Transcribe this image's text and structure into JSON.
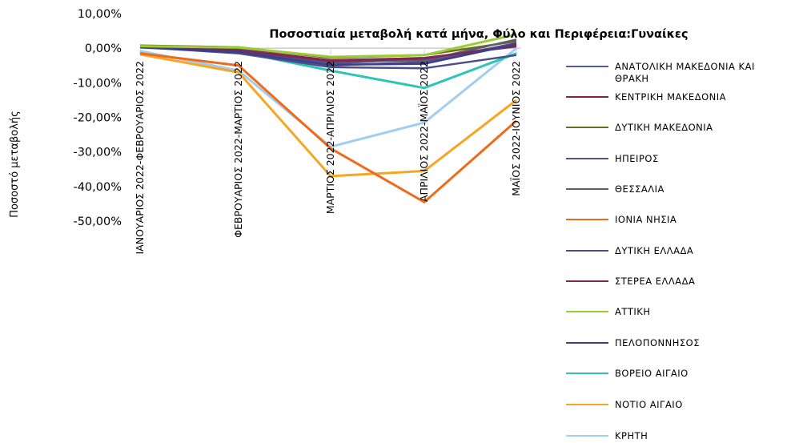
{
  "chart_data": {
    "type": "line",
    "title": "Ποσοστιαία μεταβολή  κατά μήνα, Φύλο και Περιφέρεια:Γυναίκες",
    "ylabel": "Ποσοστό μεταβολής",
    "xlabel": "",
    "ylim": [
      -50,
      10
    ],
    "yticks": [
      "10,00%",
      "0,00%",
      "-10,00%",
      "-20,00%",
      "-30,00%",
      "-40,00%",
      "-50,00%"
    ],
    "grid": "vertical",
    "legend_position": "right",
    "categories": [
      "ΙΑΝΟΥΑΡΙΟΣ 2022-ΦΕΒΡΟΥΑΡΙΟΣ 2022",
      "ΦΕΒΡΟΥΑΡΙΟΣ 2022-ΜΑΡΤΙΟΣ 2022",
      "ΜΑΡΤΙΟΣ 2022-ΑΠΡΙΛΙΟΣ 2022",
      "ΑΠΡΙΛΙΟΣ 2022-ΜΑΪΟΣ 2022",
      "ΜΑΪΟΣ 2022-ΙΟΥΝΙΟΣ 2022"
    ],
    "series": [
      {
        "name": "ΑΝΑΤΟΛΙΚΗ ΜΑΚΕΔΟΝΙΑ ΚΑΙ ΘΡΑΚΗ",
        "color": "#4f5aa0",
        "values": [
          0.3,
          -0.5,
          -4.5,
          -3.0,
          1.0
        ]
      },
      {
        "name": "ΚΕΝΤΡΙΚΗ ΜΑΚΕΔΟΝΙΑ",
        "color": "#8b1e4f",
        "values": [
          0.5,
          -0.3,
          -3.5,
          -2.8,
          0.5
        ]
      },
      {
        "name": "ΔΥΤΙΚΗ ΜΑΚΕΔΟΝΙΑ",
        "color": "#6b6b1e",
        "values": [
          0.8,
          0.3,
          -2.8,
          -2.0,
          2.0
        ]
      },
      {
        "name": "ΗΠΕΙΡΟΣ",
        "color": "#5a4f8c",
        "values": [
          0.2,
          -0.8,
          -5.0,
          -4.0,
          1.5
        ]
      },
      {
        "name": "ΘΕΣΣΑΛΙΑ",
        "color": "#5d5d6b",
        "values": [
          0.4,
          -0.4,
          -4.0,
          -3.5,
          2.5
        ]
      },
      {
        "name": "ΙΟΝΙΑ ΝΗΣΙΑ",
        "color": "#f06a1a",
        "values": [
          -1.5,
          -5.0,
          -29.0,
          -44.5,
          -21.0
        ]
      },
      {
        "name": "ΔΥΤΙΚΗ ΕΛΛΑΔΑ",
        "color": "#4a4f8a",
        "values": [
          0.3,
          -1.5,
          -5.5,
          -5.8,
          -2.0
        ]
      },
      {
        "name": "ΣΤΕΡΕΑ ΕΛΛΑΔΑ",
        "color": "#7a2a55",
        "values": [
          0.4,
          -0.6,
          -3.8,
          -3.0,
          0.8
        ]
      },
      {
        "name": "ΑΤΤΙΚΗ",
        "color": "#9acd32",
        "values": [
          0.6,
          0.2,
          -2.5,
          -2.0,
          4.0
        ]
      },
      {
        "name": "ΠΕΛΟΠΟΝΝΗΣΟΣ",
        "color": "#3d3d8c",
        "values": [
          0.3,
          -1.2,
          -4.8,
          -4.5,
          1.2
        ]
      },
      {
        "name": "ΒΟΡΕΙΟ ΑΙΓΑΙΟ",
        "color": "#2ec4b6",
        "values": [
          0.2,
          -1.0,
          -6.5,
          -11.5,
          -1.5
        ]
      },
      {
        "name": "ΝΟΤΙΟ ΑΙΓΑΙΟ",
        "color": "#f5a623",
        "values": [
          -1.8,
          -7.0,
          -37.0,
          -35.5,
          -15.0
        ]
      },
      {
        "name": "ΚΡΗΤΗ",
        "color": "#a0cdf0",
        "values": [
          -0.8,
          -6.5,
          -28.5,
          -21.5,
          0.0
        ]
      }
    ]
  }
}
